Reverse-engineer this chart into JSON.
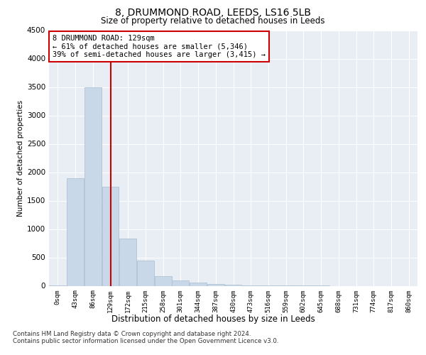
{
  "title1": "8, DRUMMOND ROAD, LEEDS, LS16 5LB",
  "title2": "Size of property relative to detached houses in Leeds",
  "xlabel": "Distribution of detached houses by size in Leeds",
  "ylabel": "Number of detached properties",
  "bar_color": "#c8d8e8",
  "bar_edge_color": "#a8bece",
  "vline_x": 3,
  "vline_color": "#cc0000",
  "annotation_text": "8 DRUMMOND ROAD: 129sqm\n← 61% of detached houses are smaller (5,346)\n39% of semi-detached houses are larger (3,415) →",
  "annotation_box_color": "#ffffff",
  "annotation_edge_color": "#cc0000",
  "footer_line1": "Contains HM Land Registry data © Crown copyright and database right 2024.",
  "footer_line2": "Contains public sector information licensed under the Open Government Licence v3.0.",
  "categories": [
    "0sqm",
    "43sqm",
    "86sqm",
    "129sqm",
    "172sqm",
    "215sqm",
    "258sqm",
    "301sqm",
    "344sqm",
    "387sqm",
    "430sqm",
    "473sqm",
    "516sqm",
    "559sqm",
    "602sqm",
    "645sqm",
    "688sqm",
    "731sqm",
    "774sqm",
    "817sqm",
    "860sqm"
  ],
  "bar_values": [
    5,
    1900,
    3500,
    1750,
    830,
    450,
    175,
    100,
    60,
    35,
    15,
    5,
    3,
    2,
    1,
    1,
    0,
    0,
    0,
    0,
    0
  ],
  "ylim": [
    0,
    4500
  ],
  "yticks": [
    0,
    500,
    1000,
    1500,
    2000,
    2500,
    3000,
    3500,
    4000,
    4500
  ],
  "background_color": "#ffffff",
  "plot_background": "#e8eef4",
  "grid_color": "#ffffff"
}
